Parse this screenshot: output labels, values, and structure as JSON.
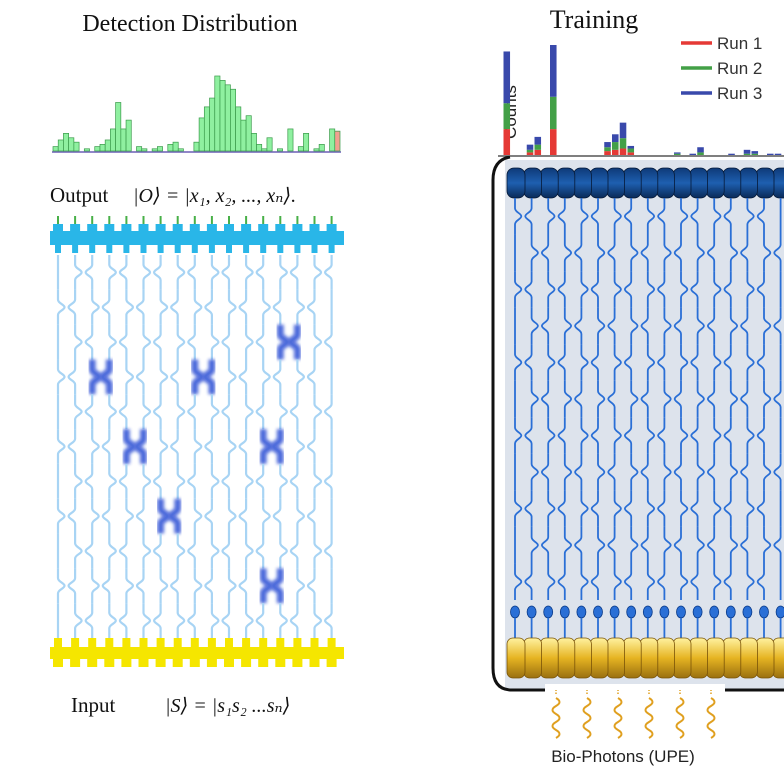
{
  "left_panel": {
    "title": "Detection Distribution",
    "output_label": "Output",
    "output_state": "|O⟩ = |x₁, x₂, ..., xₙ⟩.",
    "input_label": "Input",
    "input_state": "|S⟩ = |s₁s₂ ...sₙ⟩"
  },
  "right_panel": {
    "title": "Training",
    "y_label": "Counts",
    "source_label": "Bio-Photons (UPE)"
  },
  "colors": {
    "histogram_bar": "#8ff0a0",
    "histogram_outline": "#3a9a4a",
    "histogram_highlight": "#f0a090",
    "detector": "#29b6e8",
    "source": "#f5e600",
    "waveguide": "#2266dd",
    "run1": "#e53935",
    "run2": "#43a047",
    "run3": "#3949ab",
    "chip_bg": "#dde3ec",
    "gold": "#e6b422"
  },
  "chart_data": [
    {
      "type": "bar",
      "title": "Detection Distribution",
      "note": "output detection histogram (unlabeled axes)",
      "values": [
        2,
        5,
        8,
        6,
        4,
        0,
        1,
        0,
        2,
        3,
        5,
        10,
        22,
        10,
        14,
        0,
        2,
        1,
        0,
        1,
        2,
        0,
        3,
        4,
        1,
        0,
        0,
        4,
        15,
        20,
        24,
        34,
        32,
        30,
        28,
        20,
        14,
        16,
        8,
        3,
        1,
        6,
        0,
        1,
        0,
        10,
        0,
        2,
        8,
        0,
        1,
        3,
        0,
        10,
        9
      ]
    },
    {
      "type": "bar",
      "title": "Training",
      "ylabel": "Counts",
      "stacked": true,
      "series": [
        {
          "name": "Run 1",
          "values": [
            20,
            0,
            0,
            2,
            4,
            0,
            20,
            0,
            0,
            0,
            0,
            0,
            0,
            3,
            4,
            5,
            2,
            0,
            0,
            0,
            0,
            0,
            0,
            0,
            0,
            0,
            0,
            0,
            0,
            0,
            0,
            0,
            0,
            0,
            0,
            0
          ]
        },
        {
          "name": "Run 2",
          "values": [
            20,
            0,
            0,
            2,
            4,
            0,
            25,
            0,
            0,
            0,
            0,
            0,
            0,
            3,
            6,
            8,
            3,
            0,
            0,
            0,
            0,
            0,
            1,
            0,
            0,
            2,
            0,
            0,
            0,
            0,
            0,
            1,
            1,
            0,
            0,
            0
          ]
        },
        {
          "name": "Run 3",
          "values": [
            40,
            0,
            0,
            4,
            6,
            0,
            40,
            0,
            0,
            0,
            0,
            0,
            0,
            4,
            6,
            12,
            2,
            0,
            0,
            0,
            0,
            0,
            1,
            0,
            1,
            4,
            0,
            0,
            0,
            1,
            0,
            3,
            2,
            0,
            1,
            1
          ]
        }
      ]
    }
  ]
}
